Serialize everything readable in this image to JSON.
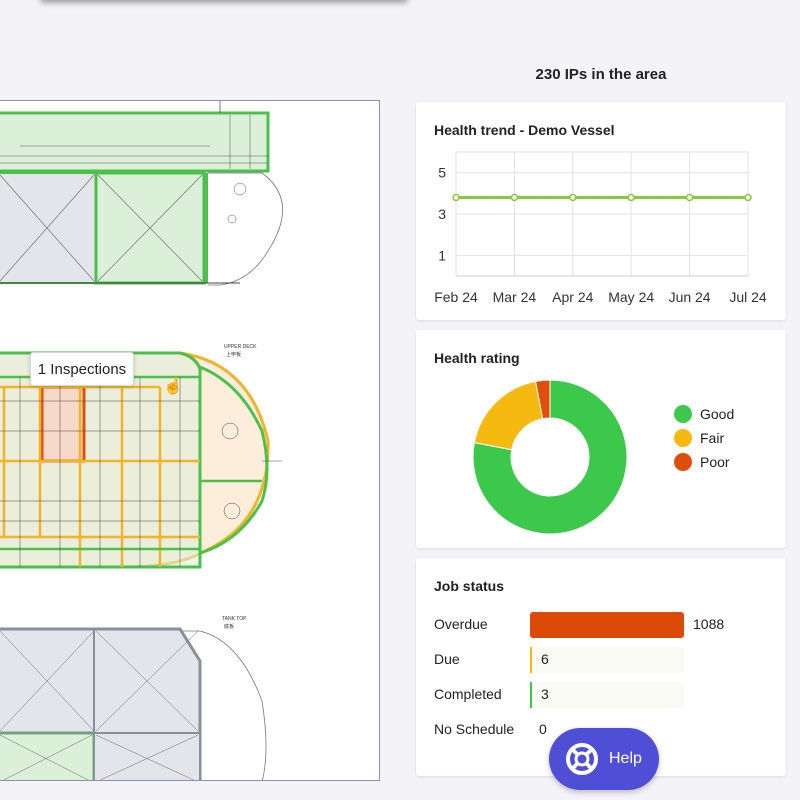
{
  "area_count": "230 IPs in the area",
  "tooltip": "1 Inspections",
  "plan_labels": {
    "upper_deck": "UPPER DECK",
    "upper_deck_cn": "上甲板",
    "tank_top": "TANK TOP",
    "tank_top_cn": "底板"
  },
  "health_trend": {
    "title": "Health trend - Demo Vessel",
    "chart_data": {
      "type": "line",
      "x": [
        "Feb 24",
        "Mar 24",
        "Apr 24",
        "May 24",
        "Jun 24",
        "Jul 24"
      ],
      "series": [
        {
          "values": [
            3.8,
            3.8,
            3.8,
            3.8,
            3.8,
            3.8
          ]
        }
      ],
      "yticks": [
        1,
        3,
        5
      ],
      "ylim": [
        0,
        6
      ],
      "grid": true,
      "line_color": "#8cc63f"
    }
  },
  "health_rating": {
    "title": "Health rating",
    "chart_data": {
      "type": "pie",
      "donut": true,
      "labels": [
        "Good",
        "Fair",
        "Poor"
      ],
      "values": [
        78,
        19,
        3
      ],
      "colors": [
        "#3cc84a",
        "#f5b90f",
        "#e04e0c"
      ],
      "legend": "right"
    }
  },
  "job_status": {
    "title": "Job status",
    "max": 1088,
    "rows": [
      {
        "label": "Overdue",
        "value": 1088,
        "display": "1088",
        "color": "#dd4a08"
      },
      {
        "label": "Due",
        "value": 6,
        "display": "6",
        "color": "#f5b90f"
      },
      {
        "label": "Completed",
        "value": 3,
        "display": "3",
        "color": "#3cc84a"
      },
      {
        "label": "No Schedule",
        "value": 0,
        "display": "0",
        "color": "#999999"
      }
    ]
  },
  "help": {
    "label": "Help",
    "icon": "lifebuoy-icon"
  }
}
